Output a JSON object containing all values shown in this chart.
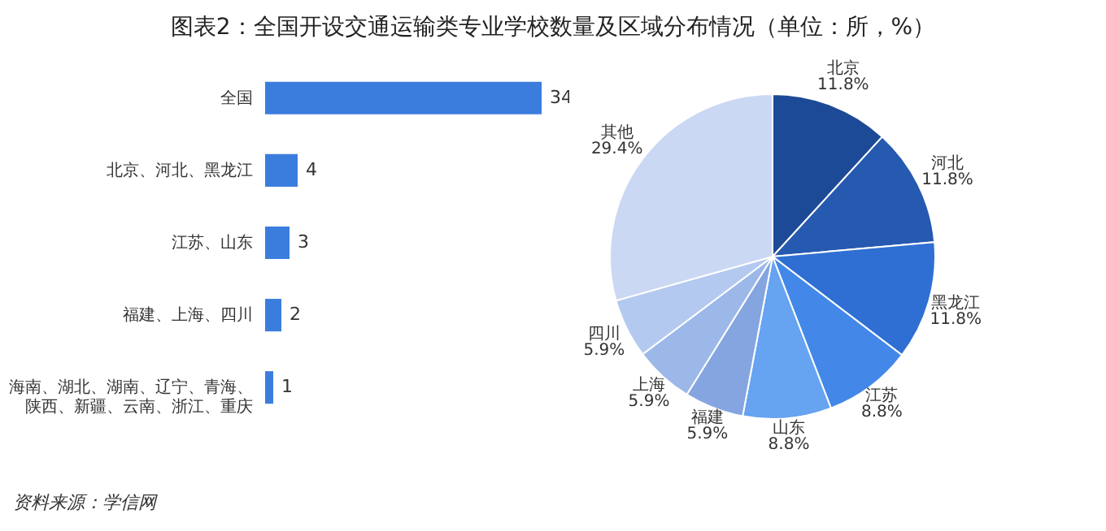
{
  "chart_data": [
    {
      "type": "bar",
      "orientation": "horizontal",
      "title": "图表2：全国开设交通运输类专业学校数量及区域分布情况（单位：所，%）",
      "categories": [
        "全国",
        "北京、河北、黑龙江",
        "江苏、山东",
        "福建、上海、四川",
        "海南、湖北、湖南、辽宁、青海、陕西、新疆、云南、浙江、重庆"
      ],
      "values": [
        34,
        4,
        3,
        2,
        1
      ],
      "color": "#3b7ddd",
      "data_labels": true,
      "annotations": [
        "资料来源：学信网"
      ]
    },
    {
      "type": "pie",
      "categories": [
        "北京",
        "河北",
        "黑龙江",
        "江苏",
        "山东",
        "福建",
        "上海",
        "四川",
        "其他"
      ],
      "values": [
        11.8,
        11.8,
        11.8,
        8.8,
        8.8,
        5.9,
        5.9,
        5.9,
        29.4
      ],
      "value_labels": [
        "11.8%",
        "11.8%",
        "11.8%",
        "8.8%",
        "8.8%",
        "5.9%",
        "5.9%",
        "5.9%",
        "29.4%"
      ],
      "colors": [
        "#1d4a96",
        "#2659b0",
        "#2f6fd3",
        "#4388e8",
        "#66a3f0",
        "#84a5e0",
        "#9cb8e8",
        "#b3c9f0",
        "#cad8f4"
      ]
    }
  ]
}
